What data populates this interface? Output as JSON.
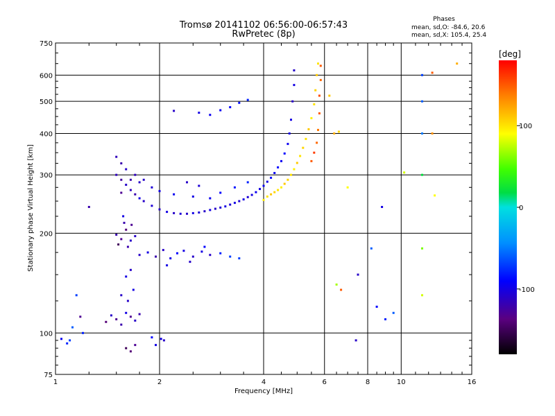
{
  "chart_data": {
    "type": "scatter",
    "title": "Tromsø 20141102 06:56:00-06:57:43",
    "subtitle": "RwPretec (8p)",
    "xlabel": "Frequency [MHz]",
    "ylabel": "Stationary phase Virtual Height [km]",
    "x_scale": "log",
    "y_scale": "log",
    "xlim": [
      1,
      16
    ],
    "ylim": [
      75,
      750
    ],
    "x_ticks": [
      1,
      2,
      4,
      6,
      8,
      10,
      16
    ],
    "x_tick_labels": [
      "1",
      "2",
      "4",
      "6",
      "8",
      "10",
      "16"
    ],
    "y_ticks": [
      75,
      100,
      200,
      300,
      400,
      500,
      600,
      750
    ],
    "y_tick_labels": [
      "75",
      "100",
      "200",
      "300",
      "400",
      "500",
      "600",
      "750"
    ],
    "grid": true,
    "info": {
      "heading": "Phases",
      "line_o": "mean, sd,O: -84.6, 20.6",
      "line_x": "mean, sd,X: 105.4, 25.4"
    },
    "colorbar": {
      "label": "[deg]",
      "range": [
        -180,
        180
      ],
      "ticks": [
        100,
        0,
        -100
      ],
      "tick_labels": [
        "100",
        "0",
        "-100"
      ],
      "colormap": "rainbow"
    },
    "series": [
      {
        "values": [
          [
            1.04,
            96,
            -95
          ],
          [
            1.08,
            93,
            -80
          ],
          [
            1.1,
            95,
            -70
          ],
          [
            1.12,
            104,
            -60
          ],
          [
            1.15,
            130,
            -70
          ],
          [
            1.18,
            112,
            -130
          ],
          [
            1.2,
            100,
            -80
          ],
          [
            1.25,
            240,
            -120
          ]
        ]
      },
      {
        "values": [
          [
            1.4,
            108,
            -140
          ],
          [
            1.45,
            113,
            -110
          ],
          [
            1.5,
            110,
            -130
          ],
          [
            1.55,
            106,
            -120
          ],
          [
            1.6,
            115,
            -100
          ],
          [
            1.65,
            112,
            -130
          ],
          [
            1.7,
            109,
            -110
          ],
          [
            1.75,
            114,
            -120
          ],
          [
            1.6,
            90,
            -150
          ],
          [
            1.65,
            88,
            -140
          ],
          [
            1.7,
            92,
            -130
          ],
          [
            1.55,
            130,
            -110
          ],
          [
            1.62,
            125,
            -110
          ],
          [
            1.68,
            135,
            -100
          ],
          [
            1.6,
            148,
            -100
          ],
          [
            1.65,
            155,
            -110
          ],
          [
            1.9,
            97,
            -90
          ],
          [
            1.95,
            92,
            -100
          ],
          [
            2.02,
            96,
            -100
          ],
          [
            2.06,
            95,
            -110
          ]
        ]
      },
      {
        "values": [
          [
            1.5,
            198,
            -120
          ],
          [
            1.55,
            192,
            -130
          ],
          [
            1.6,
            205,
            -140
          ],
          [
            1.65,
            190,
            -110
          ],
          [
            1.58,
            215,
            -120
          ],
          [
            1.52,
            185,
            -150
          ],
          [
            1.62,
            182,
            -120
          ],
          [
            1.7,
            196,
            -110
          ],
          [
            1.57,
            225,
            -100
          ],
          [
            1.66,
            212,
            -130
          ]
        ]
      },
      {
        "values": [
          [
            1.75,
            172,
            -110
          ],
          [
            1.85,
            175,
            -100
          ],
          [
            1.95,
            170,
            -120
          ],
          [
            2.05,
            178,
            -110
          ],
          [
            2.15,
            168,
            -100
          ],
          [
            2.25,
            174,
            -90
          ],
          [
            2.35,
            177,
            -100
          ],
          [
            2.5,
            170,
            -110
          ],
          [
            2.65,
            176,
            -100
          ],
          [
            2.8,
            172,
            -110
          ],
          [
            3.0,
            174,
            -80
          ],
          [
            3.2,
            170,
            -70
          ],
          [
            3.4,
            168,
            -70
          ],
          [
            2.45,
            164,
            -110
          ],
          [
            2.1,
            160,
            -100
          ],
          [
            2.7,
            182,
            -90
          ]
        ]
      },
      {
        "values": [
          [
            1.5,
            340,
            -115
          ],
          [
            1.55,
            325,
            -120
          ],
          [
            1.6,
            312,
            -110
          ],
          [
            1.5,
            300,
            -115
          ],
          [
            1.55,
            290,
            -125
          ],
          [
            1.6,
            280,
            -110
          ],
          [
            1.65,
            270,
            -115
          ],
          [
            1.7,
            262,
            -120
          ],
          [
            1.75,
            255,
            -100
          ],
          [
            1.8,
            250,
            -110
          ],
          [
            1.9,
            242,
            -105
          ],
          [
            2.0,
            236,
            -110
          ],
          [
            2.1,
            232,
            -100
          ],
          [
            2.2,
            230,
            -110
          ],
          [
            2.3,
            229,
            -105
          ],
          [
            2.4,
            229,
            -110
          ],
          [
            2.5,
            230,
            -100
          ],
          [
            2.6,
            231,
            -105
          ],
          [
            2.7,
            233,
            -110
          ],
          [
            2.8,
            235,
            -100
          ],
          [
            2.9,
            237,
            -110
          ],
          [
            3.0,
            239,
            -105
          ],
          [
            3.1,
            241,
            -100
          ],
          [
            3.2,
            244,
            -105
          ],
          [
            3.3,
            247,
            -100
          ],
          [
            3.4,
            250,
            -105
          ],
          [
            3.5,
            253,
            -100
          ],
          [
            3.6,
            257,
            -105
          ],
          [
            3.7,
            261,
            -100
          ],
          [
            3.8,
            266,
            -95
          ],
          [
            3.9,
            272,
            -100
          ],
          [
            4.0,
            278,
            -95
          ],
          [
            4.1,
            286,
            -100
          ],
          [
            4.2,
            294,
            -90
          ],
          [
            4.3,
            304,
            -95
          ],
          [
            4.4,
            316,
            -90
          ],
          [
            4.5,
            330,
            -95
          ],
          [
            4.6,
            348,
            -90
          ],
          [
            4.7,
            372,
            -95
          ],
          [
            4.75,
            400,
            -100
          ],
          [
            4.8,
            440,
            -100
          ],
          [
            4.85,
            500,
            -110
          ],
          [
            4.9,
            560,
            -100
          ],
          [
            4.9,
            620,
            -110
          ],
          [
            1.8,
            290,
            -110
          ],
          [
            1.9,
            275,
            -105
          ],
          [
            2.0,
            268,
            -100
          ],
          [
            2.2,
            262,
            -95
          ],
          [
            2.5,
            258,
            -100
          ],
          [
            2.8,
            255,
            -95
          ],
          [
            3.0,
            265,
            -90
          ],
          [
            3.3,
            275,
            -85
          ],
          [
            3.6,
            285,
            -80
          ],
          [
            2.4,
            285,
            -110
          ],
          [
            2.6,
            278,
            -105
          ],
          [
            1.55,
            265,
            -130
          ],
          [
            1.65,
            290,
            -120
          ],
          [
            1.7,
            300,
            -115
          ],
          [
            1.75,
            285,
            -110
          ],
          [
            3.0,
            470,
            -95
          ],
          [
            3.2,
            480,
            -90
          ],
          [
            3.4,
            495,
            -85
          ],
          [
            3.6,
            505,
            -80
          ],
          [
            2.6,
            462,
            -100
          ],
          [
            2.2,
            468,
            -110
          ],
          [
            2.8,
            455,
            -95
          ]
        ]
      },
      {
        "values": [
          [
            4.0,
            252,
            95
          ],
          [
            4.1,
            258,
            100
          ],
          [
            4.2,
            262,
            110
          ],
          [
            4.3,
            266,
            105
          ],
          [
            4.4,
            270,
            100
          ],
          [
            4.5,
            275,
            95
          ],
          [
            4.6,
            282,
            110
          ],
          [
            4.7,
            290,
            105
          ],
          [
            4.8,
            300,
            100
          ],
          [
            4.9,
            312,
            95
          ],
          [
            5.0,
            326,
            110
          ],
          [
            5.1,
            342,
            100
          ],
          [
            5.2,
            362,
            105
          ],
          [
            5.3,
            385,
            100
          ],
          [
            5.4,
            412,
            110
          ],
          [
            5.5,
            445,
            95
          ],
          [
            5.6,
            490,
            100
          ],
          [
            5.65,
            540,
            105
          ],
          [
            5.7,
            600,
            110
          ],
          [
            5.75,
            650,
            100
          ],
          [
            5.5,
            330,
            150
          ],
          [
            5.6,
            350,
            160
          ],
          [
            5.7,
            375,
            145
          ],
          [
            5.75,
            410,
            140
          ],
          [
            5.8,
            460,
            150
          ],
          [
            5.8,
            520,
            155
          ],
          [
            5.85,
            580,
            145
          ],
          [
            5.85,
            640,
            150
          ],
          [
            6.2,
            520,
            110
          ],
          [
            6.4,
            400,
            120
          ],
          [
            6.6,
            405,
            105
          ],
          [
            7.0,
            275,
            90
          ],
          [
            7.4,
            95,
            -110
          ],
          [
            8.5,
            120,
            -90
          ],
          [
            9.0,
            110,
            -80
          ],
          [
            9.5,
            115,
            -60
          ],
          [
            8.8,
            240,
            -100
          ]
        ]
      },
      {
        "values": [
          [
            11.5,
            600,
            -70
          ],
          [
            11.5,
            500,
            -60
          ],
          [
            11.5,
            400,
            -50
          ],
          [
            11.5,
            300,
            20
          ],
          [
            11.5,
            180,
            60
          ],
          [
            11.5,
            130,
            80
          ],
          [
            12.3,
            610,
            150
          ],
          [
            12.3,
            400,
            130
          ],
          [
            12.5,
            260,
            90
          ],
          [
            14.5,
            650,
            120
          ],
          [
            10.2,
            305,
            80
          ],
          [
            8.2,
            180,
            -60
          ],
          [
            6.5,
            140,
            70
          ],
          [
            6.7,
            135,
            150
          ],
          [
            7.5,
            150,
            -110
          ]
        ]
      }
    ]
  }
}
